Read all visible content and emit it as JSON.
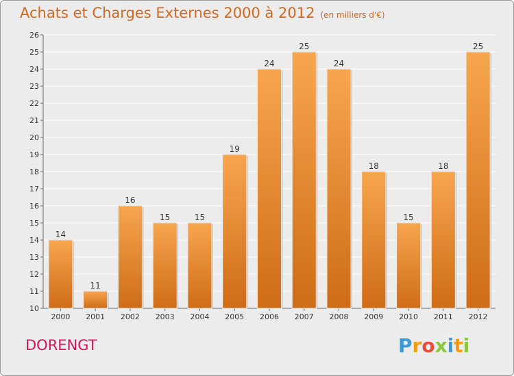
{
  "header": {
    "title": "Achats et Charges Externes 2000 à 2012",
    "unit": "(en milliers d'€)"
  },
  "footer": {
    "location": "DORENGT",
    "brand": "Proxiti"
  },
  "colors": {
    "title": "#d2691e",
    "location": "#d4145a",
    "bar_light": "#f7a64e",
    "bar_dark": "#cf6c17",
    "plot_background": "#ececec",
    "grid": "#ffffff",
    "brand_letters": [
      "#3d9ad6",
      "#f39c12",
      "#e74c3c",
      "#8cc63f",
      "#3d9ad6",
      "#f39c12",
      "#8cc63f"
    ]
  },
  "chart_data": {
    "type": "bar",
    "title": "Achats et Charges Externes 2000 à 2012",
    "subtitle": "(en milliers d'€)",
    "xlabel": "",
    "ylabel": "",
    "categories": [
      "2000",
      "2001",
      "2002",
      "2003",
      "2004",
      "2005",
      "2006",
      "2007",
      "2008",
      "2009",
      "2010",
      "2011",
      "2012"
    ],
    "values": [
      14,
      11,
      16,
      15,
      15,
      19,
      24,
      25,
      24,
      18,
      15,
      18,
      25
    ],
    "data_labels": [
      "14",
      "11",
      "16",
      "15",
      "15",
      "19",
      "24",
      "25",
      "24",
      "18",
      "15",
      "18",
      "25"
    ],
    "ylim": [
      10,
      26
    ],
    "yticks": [
      10,
      11,
      12,
      13,
      14,
      15,
      16,
      17,
      18,
      19,
      20,
      21,
      22,
      23,
      24,
      25,
      26
    ],
    "grid": true,
    "legend": "none"
  }
}
